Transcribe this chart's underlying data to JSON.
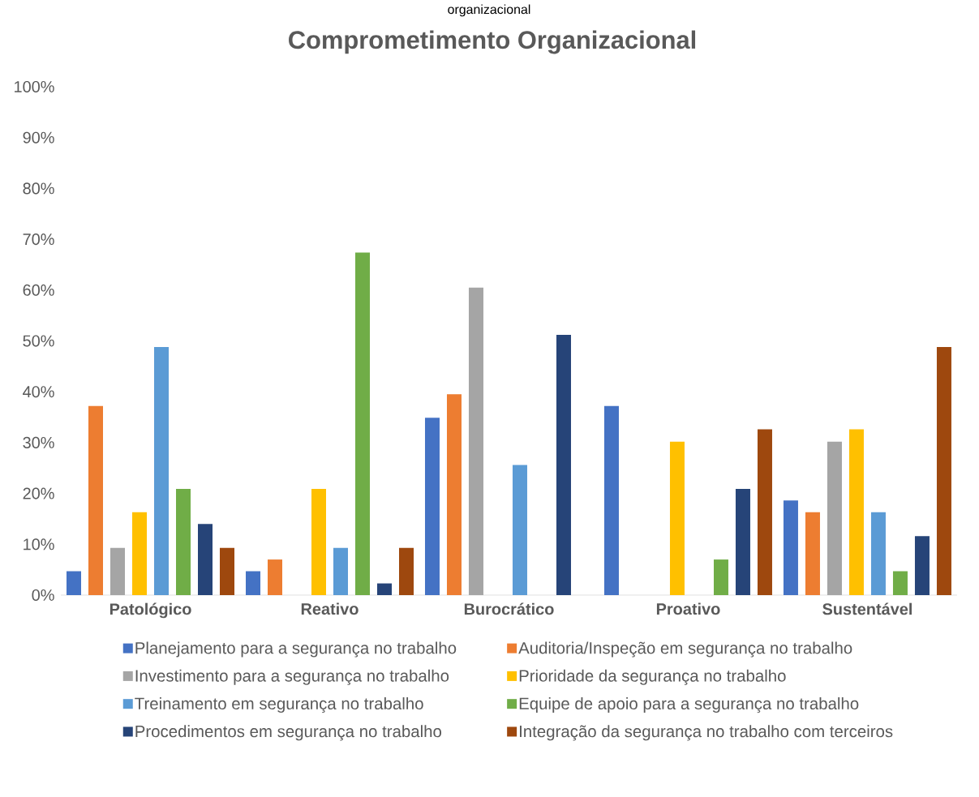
{
  "chart_data": {
    "type": "bar",
    "title": "Comprometimento Organizacional",
    "annotations": [
      "organizacional"
    ],
    "categories": [
      "Patológico",
      "Reativo",
      "Burocrático",
      "Proativo",
      "Sustentável"
    ],
    "series": [
      {
        "name": "Planejamento para a segurança no trabalho",
        "color": "#4472c4",
        "values": [
          4.7,
          4.7,
          34.9,
          37.2,
          18.6
        ]
      },
      {
        "name": "Auditoria/Inspeção em segurança no trabalho",
        "color": "#ed7d31",
        "values": [
          37.2,
          7.0,
          39.5,
          0,
          16.3
        ]
      },
      {
        "name": "Investimento para a segurança no trabalho",
        "color": "#a5a5a5",
        "values": [
          9.3,
          0,
          60.5,
          0,
          30.2
        ]
      },
      {
        "name": "Prioridade da segurança no trabalho",
        "color": "#ffc000",
        "values": [
          16.3,
          20.9,
          0,
          30.2,
          32.6
        ]
      },
      {
        "name": "Treinamento em segurança no trabalho",
        "color": "#5b9bd5",
        "values": [
          48.8,
          9.3,
          25.6,
          0,
          16.3
        ]
      },
      {
        "name": "Equipe de apoio para a segurança no trabalho",
        "color": "#70ad47",
        "values": [
          20.9,
          67.4,
          0,
          7.0,
          4.7
        ]
      },
      {
        "name": "Procedimentos em segurança no trabalho",
        "color": "#264478",
        "values": [
          14.0,
          2.3,
          51.2,
          20.9,
          11.6
        ]
      },
      {
        "name": "Integração da segurança no trabalho com terceiros",
        "color": "#9e480e",
        "values": [
          9.3,
          9.3,
          0,
          32.6,
          48.8
        ]
      }
    ],
    "ylim": [
      0,
      100
    ],
    "yticks": [
      {
        "value": 0,
        "label": "0%"
      },
      {
        "value": 10,
        "label": "10%"
      },
      {
        "value": 20,
        "label": "20%"
      },
      {
        "value": 30,
        "label": "30%"
      },
      {
        "value": 40,
        "label": "40%"
      },
      {
        "value": 50,
        "label": "50%"
      },
      {
        "value": 60,
        "label": "60%"
      },
      {
        "value": 70,
        "label": "70%"
      },
      {
        "value": 80,
        "label": "80%"
      },
      {
        "value": 90,
        "label": "90%"
      },
      {
        "value": 100,
        "label": "100%"
      }
    ],
    "grid": false,
    "legend": "bottom"
  }
}
